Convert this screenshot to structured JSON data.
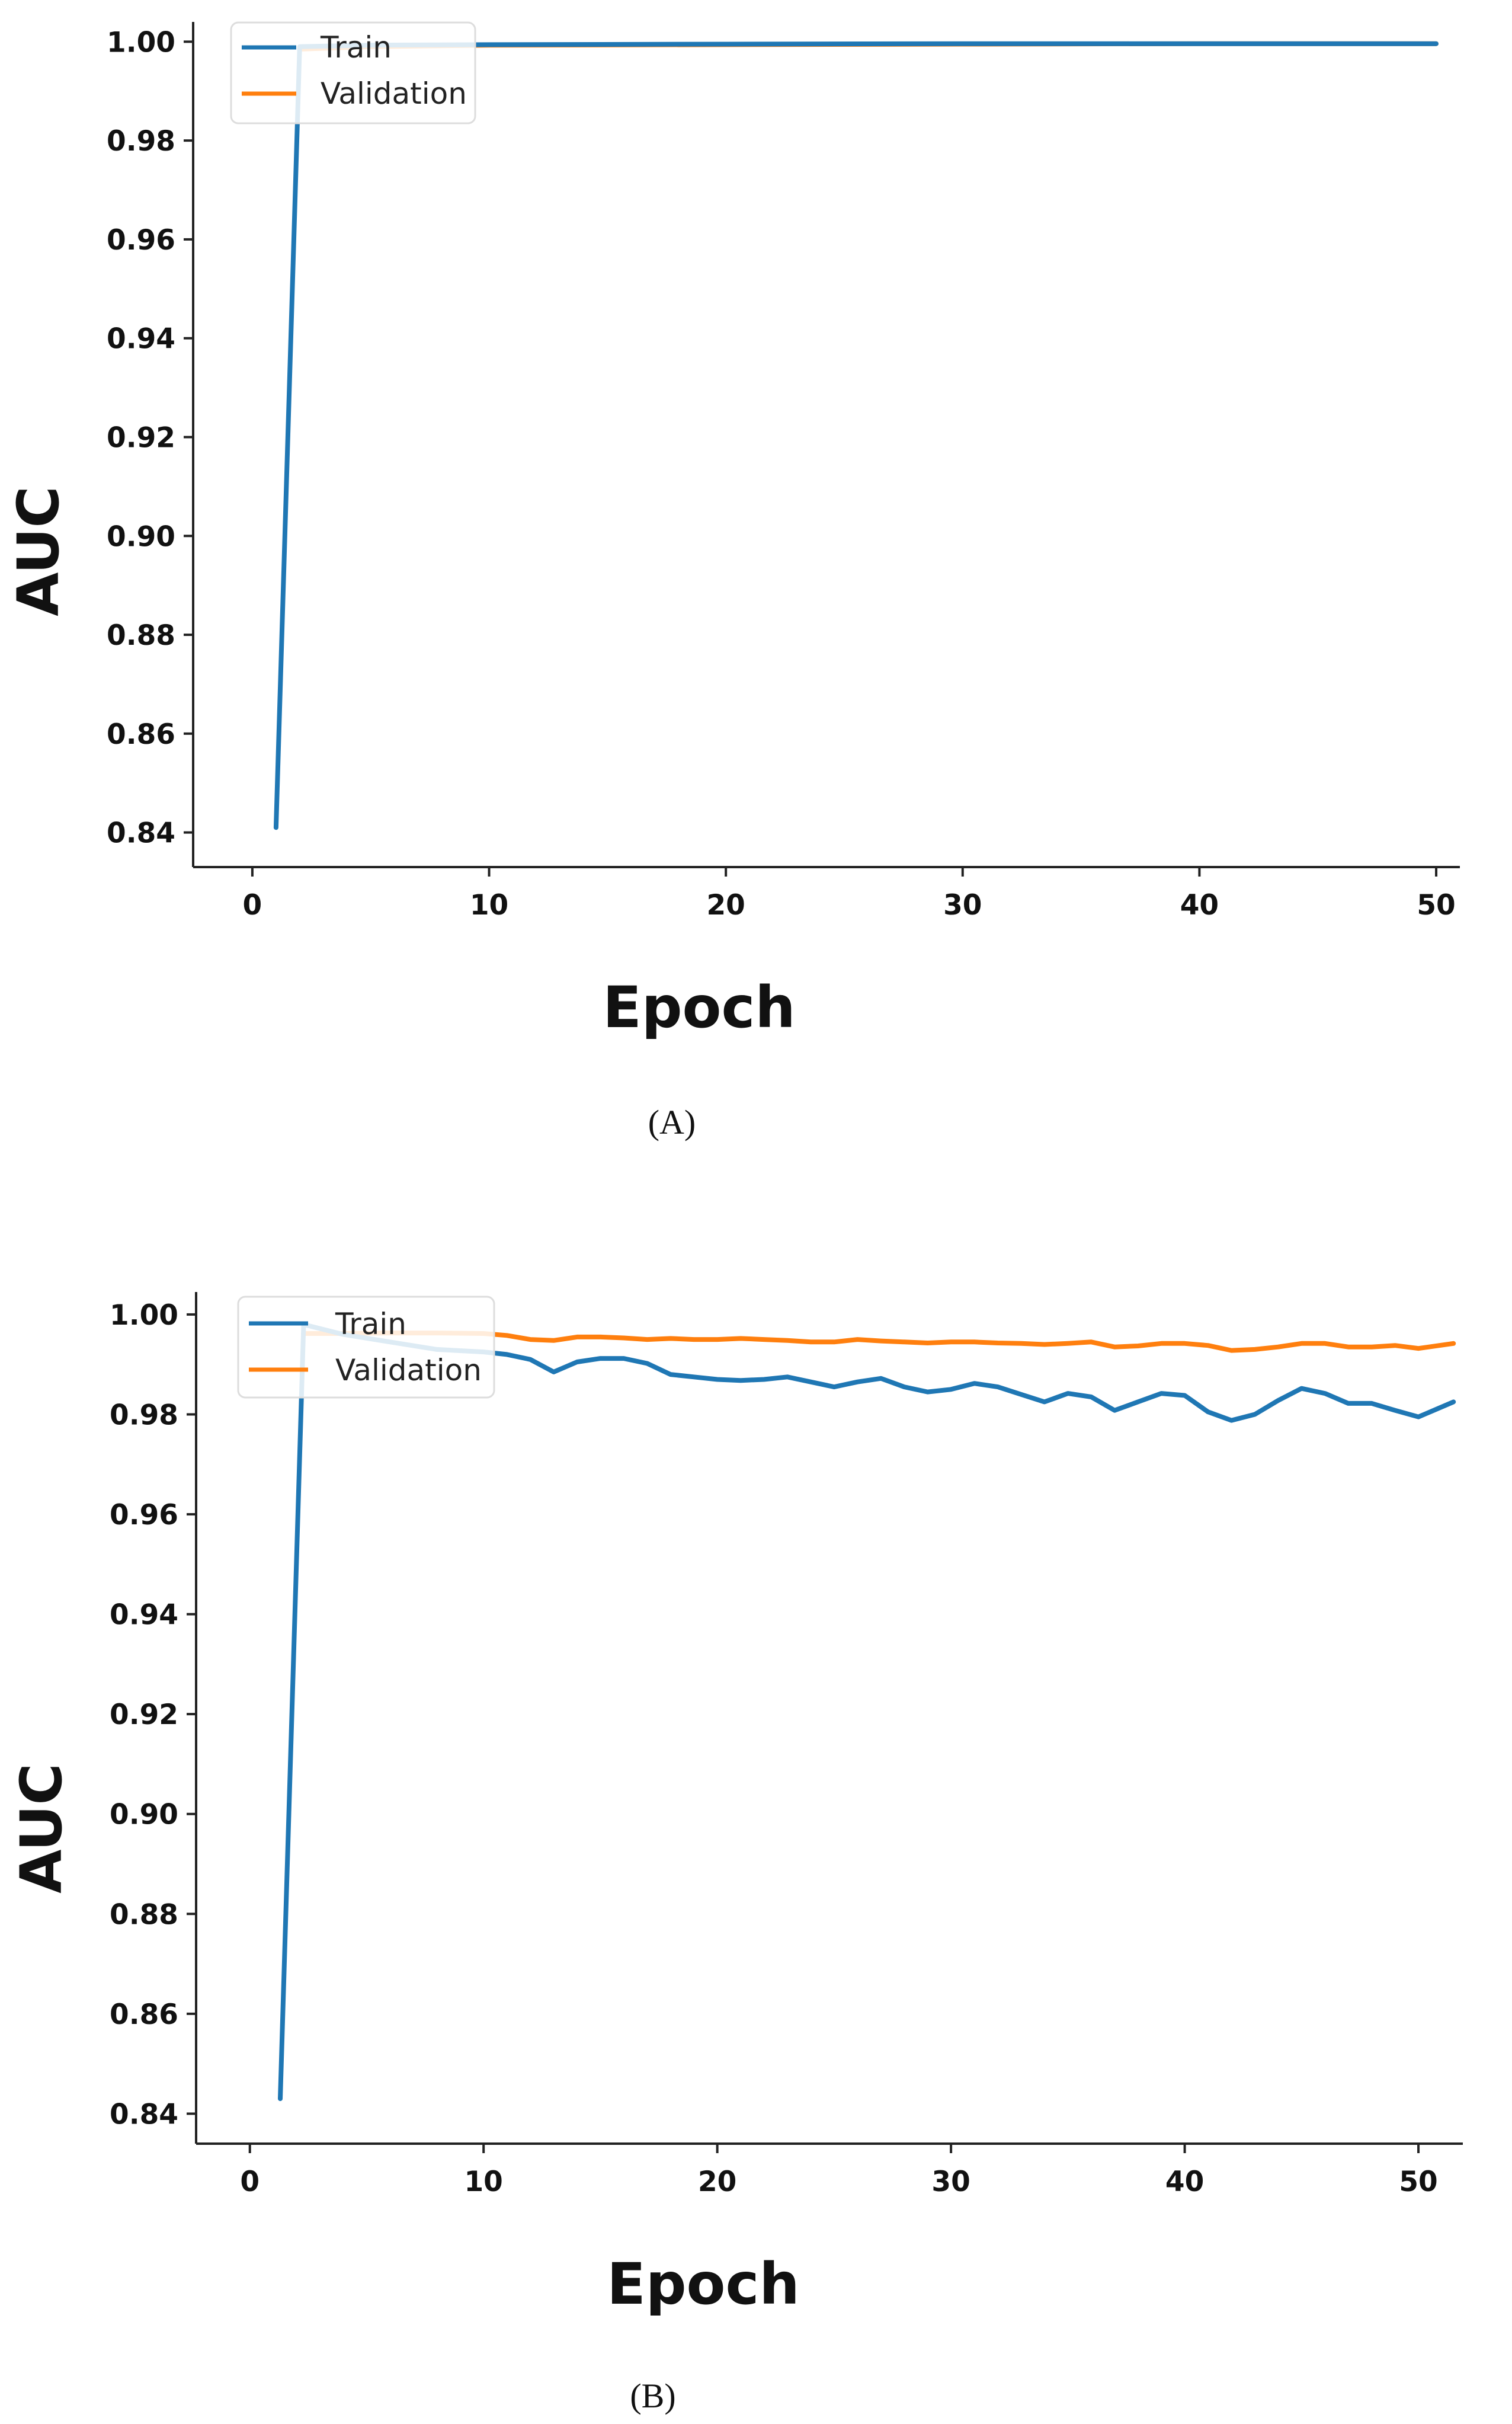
{
  "chart_data": [
    {
      "type": "line",
      "caption": "(A)",
      "xlabel": "Epoch",
      "ylabel": "AUC",
      "xlim": [
        -2.5,
        51
      ],
      "ylim": [
        0.833,
        1.004
      ],
      "xticks": [
        0,
        10,
        20,
        30,
        40,
        50
      ],
      "yticks": [
        0.84,
        0.86,
        0.88,
        0.9,
        0.92,
        0.94,
        0.96,
        0.98,
        1.0
      ],
      "ytick_labels": [
        "0.84",
        "0.86",
        "0.88",
        "0.90",
        "0.92",
        "0.94",
        "0.96",
        "0.98",
        "1.00"
      ],
      "grid": false,
      "legend": "top-left",
      "series": [
        {
          "name": "Train",
          "color": "#1f77b4",
          "points": [
            [
              1,
              0.841
            ],
            [
              2,
              0.999
            ],
            [
              5,
              0.9993
            ],
            [
              10,
              0.9994
            ],
            [
              20,
              0.9995
            ],
            [
              30,
              0.9996
            ],
            [
              40,
              0.9996
            ],
            [
              50,
              0.9996
            ]
          ]
        },
        {
          "name": "Validation",
          "color": "#ff7f0e",
          "points": [
            [
              2,
              0.9985
            ],
            [
              5,
              0.999
            ],
            [
              10,
              0.9993
            ],
            [
              20,
              0.9994
            ],
            [
              30,
              0.9995
            ],
            [
              40,
              0.9996
            ],
            [
              50,
              0.9996
            ]
          ]
        }
      ]
    },
    {
      "type": "line",
      "caption": "(B)",
      "xlabel": "Epoch",
      "ylabel": "AUC",
      "xlim": [
        -2.3,
        51.9
      ],
      "ylim": [
        0.834,
        1.0045
      ],
      "xticks": [
        0,
        10,
        20,
        30,
        40,
        50
      ],
      "yticks": [
        0.84,
        0.86,
        0.88,
        0.9,
        0.92,
        0.94,
        0.96,
        0.98,
        1.0
      ],
      "ytick_labels": [
        "0.84",
        "0.86",
        "0.88",
        "0.90",
        "0.92",
        "0.94",
        "0.96",
        "0.98",
        "1.00"
      ],
      "grid": false,
      "legend": "top-left",
      "series": [
        {
          "name": "Train",
          "color": "#1f77b4",
          "points": [
            [
              1.3,
              0.843
            ],
            [
              2.3,
              0.998
            ],
            [
              4,
              0.996
            ],
            [
              6,
              0.9945
            ],
            [
              8,
              0.993
            ],
            [
              10,
              0.9925
            ],
            [
              11,
              0.992
            ],
            [
              12,
              0.991
            ],
            [
              13,
              0.9885
            ],
            [
              14,
              0.9905
            ],
            [
              15,
              0.9912
            ],
            [
              16,
              0.9912
            ],
            [
              17,
              0.9902
            ],
            [
              18,
              0.988
            ],
            [
              19,
              0.9875
            ],
            [
              20,
              0.987
            ],
            [
              21,
              0.9868
            ],
            [
              22,
              0.987
            ],
            [
              23,
              0.9875
            ],
            [
              24,
              0.9865
            ],
            [
              25,
              0.9855
            ],
            [
              26,
              0.9865
            ],
            [
              27,
              0.9872
            ],
            [
              28,
              0.9855
            ],
            [
              29,
              0.9845
            ],
            [
              30,
              0.985
            ],
            [
              31,
              0.9862
            ],
            [
              32,
              0.9855
            ],
            [
              33,
              0.984
            ],
            [
              34,
              0.9825
            ],
            [
              35,
              0.9842
            ],
            [
              36,
              0.9835
            ],
            [
              37,
              0.9808
            ],
            [
              38,
              0.9825
            ],
            [
              39,
              0.9842
            ],
            [
              40,
              0.9838
            ],
            [
              41,
              0.9805
            ],
            [
              42,
              0.9788
            ],
            [
              43,
              0.98
            ],
            [
              44,
              0.9828
            ],
            [
              45,
              0.9852
            ],
            [
              46,
              0.9842
            ],
            [
              47,
              0.9822
            ],
            [
              48,
              0.9822
            ],
            [
              49,
              0.9808
            ],
            [
              50,
              0.9795
            ],
            [
              51.5,
              0.9825
            ]
          ]
        },
        {
          "name": "Validation",
          "color": "#ff7f0e",
          "points": [
            [
              2.3,
              0.9962
            ],
            [
              4,
              0.9962
            ],
            [
              6,
              0.9963
            ],
            [
              8,
              0.9963
            ],
            [
              10,
              0.9962
            ],
            [
              11,
              0.9958
            ],
            [
              12,
              0.995
            ],
            [
              13,
              0.9948
            ],
            [
              14,
              0.9955
            ],
            [
              15,
              0.9955
            ],
            [
              16,
              0.9953
            ],
            [
              17,
              0.995
            ],
            [
              18,
              0.9952
            ],
            [
              19,
              0.995
            ],
            [
              20,
              0.995
            ],
            [
              21,
              0.9952
            ],
            [
              22,
              0.995
            ],
            [
              23,
              0.9948
            ],
            [
              24,
              0.9945
            ],
            [
              25,
              0.9945
            ],
            [
              26,
              0.995
            ],
            [
              27,
              0.9947
            ],
            [
              28,
              0.9945
            ],
            [
              29,
              0.9943
            ],
            [
              30,
              0.9945
            ],
            [
              31,
              0.9945
            ],
            [
              32,
              0.9943
            ],
            [
              33,
              0.9942
            ],
            [
              34,
              0.994
            ],
            [
              35,
              0.9942
            ],
            [
              36,
              0.9945
            ],
            [
              37,
              0.9935
            ],
            [
              38,
              0.9937
            ],
            [
              39,
              0.9942
            ],
            [
              40,
              0.9942
            ],
            [
              41,
              0.9938
            ],
            [
              42,
              0.9928
            ],
            [
              43,
              0.993
            ],
            [
              44,
              0.9935
            ],
            [
              45,
              0.9942
            ],
            [
              46,
              0.9942
            ],
            [
              47,
              0.9935
            ],
            [
              48,
              0.9935
            ],
            [
              49,
              0.9938
            ],
            [
              50,
              0.9932
            ],
            [
              51.5,
              0.9942
            ]
          ]
        }
      ]
    }
  ]
}
